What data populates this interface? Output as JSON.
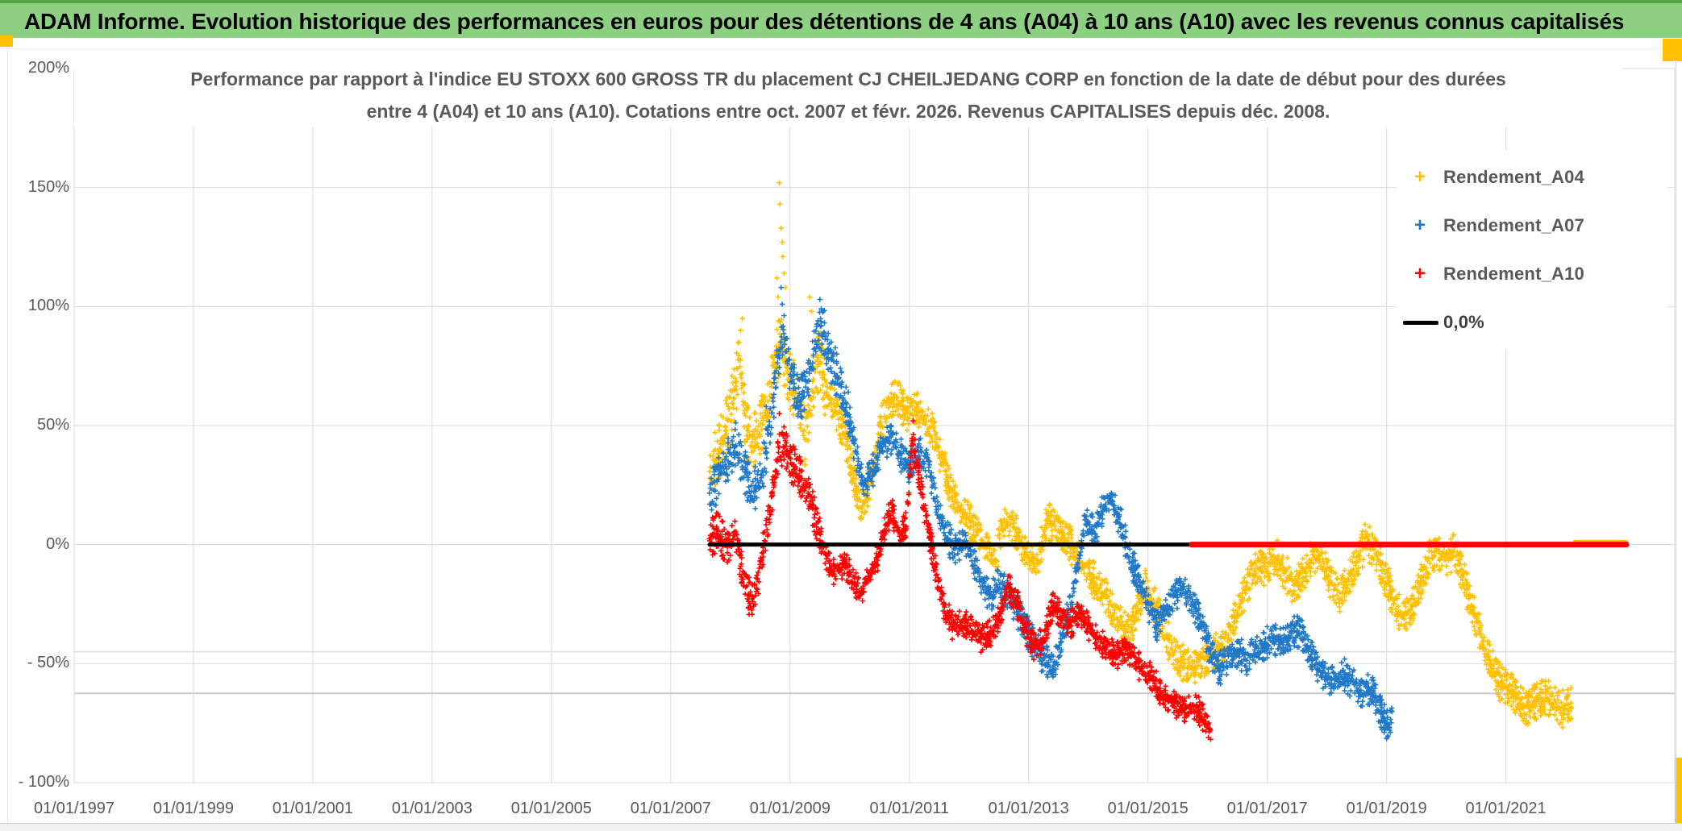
{
  "banner": {
    "title": "ADAM Informe. Evolution historique des performances en euros pour des détentions de 4 ans (A04) à 10 ans (A10) avec les revenus connus capitalisés",
    "bg_color": "#8ED081",
    "top_border_color": "#55A43F"
  },
  "chart": {
    "title1": "Performance par rapport à l'indice EU STOXX 600 GROSS TR  du placement CJ CHEILJEDANG CORP en fonction de la date de début pour des durées",
    "title2": "entre 4 (A04) et 10 ans (A10). Cotations entre oct. 2007 et févr. 2026. Revenus CAPITALISES depuis déc. 2008."
  },
  "legend": {
    "items": [
      {
        "label": "Rendement_A04",
        "marker": "+",
        "color": "#FFC000"
      },
      {
        "label": "Rendement_A07",
        "marker": "+",
        "color": "#1F78C8"
      },
      {
        "label": "Rendement_A10",
        "marker": "+",
        "color": "#FF0000"
      },
      {
        "label": "0,0%",
        "marker": "line",
        "color": "#000000"
      }
    ]
  },
  "chart_data": {
    "type": "scatter",
    "marker": "plus",
    "title": "Performance par rapport à l'indice EU STOXX 600 GROSS TR du placement CJ CHEILJEDANG CORP",
    "xlim": [
      1997.0,
      2023.83
    ],
    "ylim": [
      -100,
      200
    ],
    "grid": true,
    "x_axis": {
      "tick_years": [
        1997,
        1999,
        2001,
        2003,
        2005,
        2007,
        2009,
        2011,
        2013,
        2015,
        2017,
        2019,
        2021
      ],
      "tick_labels": [
        "01/01/1997",
        "01/01/1999",
        "01/01/2001",
        "01/01/2003",
        "01/01/2005",
        "01/01/2007",
        "01/01/2009",
        "01/01/2011",
        "01/01/2013",
        "01/01/2015",
        "01/01/2017",
        "01/01/2019",
        "01/01/2021"
      ]
    },
    "y_axis": {
      "tick_values": [
        200,
        150,
        100,
        50,
        0,
        -50,
        -100
      ],
      "tick_labels": [
        "200%",
        "150%",
        "100%",
        "50%",
        "0%",
        "- 50%",
        "- 100%"
      ]
    },
    "gridline_color": "#D9D9D9",
    "reference_lines": [
      {
        "name": "ref-minus-45",
        "value": -45,
        "color": "#DCDCDC",
        "width": 1.5
      },
      {
        "name": "ref-minus-62",
        "value": -62.5,
        "color": "#C9C9C9",
        "width": 2
      }
    ],
    "zero_lines": [
      {
        "name": "zero-black",
        "t": [
          2007.65,
          2015.73
        ],
        "value": 0,
        "color": "#000000",
        "width": 5
      },
      {
        "name": "zero-yellow",
        "t": [
          2022.15,
          2023.02
        ],
        "value": 1.3,
        "color": "#FFC000",
        "width": 4
      },
      {
        "name": "zero-red",
        "t": [
          2015.73,
          2023.02
        ],
        "value": 0,
        "color": "#FF0000",
        "width": 7
      }
    ],
    "series": [
      {
        "name": "Rendement_A04",
        "color": "#FFC000",
        "spread": 8,
        "spread_early": 1.7,
        "early_until": 2009.6,
        "points": [
          [
            2007.65,
            30
          ],
          [
            2007.8,
            38
          ],
          [
            2007.95,
            52
          ],
          [
            2008.05,
            62
          ],
          [
            2008.15,
            75
          ],
          [
            2008.25,
            52
          ],
          [
            2008.35,
            42
          ],
          [
            2008.5,
            48
          ],
          [
            2008.65,
            60
          ],
          [
            2008.75,
            78
          ],
          [
            2008.85,
            85
          ],
          [
            2008.95,
            72
          ],
          [
            2009.1,
            62
          ],
          [
            2009.25,
            45
          ],
          [
            2009.4,
            70
          ],
          [
            2009.5,
            78
          ],
          [
            2009.6,
            65
          ],
          [
            2009.75,
            58
          ],
          [
            2009.9,
            48
          ],
          [
            2010.05,
            30
          ],
          [
            2010.2,
            15
          ],
          [
            2010.35,
            28
          ],
          [
            2010.5,
            48
          ],
          [
            2010.65,
            60
          ],
          [
            2010.8,
            62
          ],
          [
            2010.95,
            55
          ],
          [
            2011.1,
            58
          ],
          [
            2011.25,
            52
          ],
          [
            2011.4,
            48
          ],
          [
            2011.55,
            35
          ],
          [
            2011.7,
            22
          ],
          [
            2011.85,
            15
          ],
          [
            2012.0,
            10
          ],
          [
            2012.15,
            5
          ],
          [
            2012.3,
            -2
          ],
          [
            2012.45,
            -8
          ],
          [
            2012.55,
            8
          ],
          [
            2012.7,
            10
          ],
          [
            2012.85,
            2
          ],
          [
            2013.0,
            -5
          ],
          [
            2013.15,
            -8
          ],
          [
            2013.3,
            10
          ],
          [
            2013.45,
            8
          ],
          [
            2013.6,
            3
          ],
          [
            2013.75,
            -2
          ],
          [
            2013.9,
            -8
          ],
          [
            2014.1,
            -15
          ],
          [
            2014.3,
            -22
          ],
          [
            2014.5,
            -32
          ],
          [
            2014.65,
            -38
          ],
          [
            2014.8,
            -30
          ],
          [
            2014.95,
            -18
          ],
          [
            2015.1,
            -25
          ],
          [
            2015.3,
            -38
          ],
          [
            2015.5,
            -48
          ],
          [
            2015.7,
            -52
          ],
          [
            2015.9,
            -50
          ],
          [
            2016.1,
            -46
          ],
          [
            2016.3,
            -42
          ],
          [
            2016.5,
            -28
          ],
          [
            2016.7,
            -15
          ],
          [
            2016.85,
            -8
          ],
          [
            2017.0,
            -10
          ],
          [
            2017.15,
            -5
          ],
          [
            2017.3,
            -12
          ],
          [
            2017.45,
            -18
          ],
          [
            2017.6,
            -12
          ],
          [
            2017.75,
            -6
          ],
          [
            2017.9,
            -4
          ],
          [
            2018.05,
            -15
          ],
          [
            2018.2,
            -22
          ],
          [
            2018.35,
            -15
          ],
          [
            2018.5,
            -8
          ],
          [
            2018.65,
            2
          ],
          [
            2018.8,
            -3
          ],
          [
            2018.95,
            -12
          ],
          [
            2019.1,
            -22
          ],
          [
            2019.25,
            -30
          ],
          [
            2019.4,
            -28
          ],
          [
            2019.55,
            -18
          ],
          [
            2019.7,
            -6
          ],
          [
            2019.85,
            -2
          ],
          [
            2020.0,
            -6
          ],
          [
            2020.15,
            -2
          ],
          [
            2020.3,
            -15
          ],
          [
            2020.45,
            -28
          ],
          [
            2020.6,
            -40
          ],
          [
            2020.75,
            -50
          ],
          [
            2020.9,
            -58
          ],
          [
            2021.05,
            -60
          ],
          [
            2021.2,
            -65
          ],
          [
            2021.35,
            -70
          ],
          [
            2021.5,
            -66
          ],
          [
            2021.65,
            -63
          ],
          [
            2021.8,
            -66
          ],
          [
            2021.95,
            -69
          ],
          [
            2022.1,
            -66
          ]
        ],
        "outliers": [
          [
            2008.82,
            152
          ],
          [
            2008.83,
            143
          ],
          [
            2008.85,
            133
          ],
          [
            2008.87,
            127
          ],
          [
            2008.88,
            121
          ],
          [
            2008.9,
            114
          ],
          [
            2008.92,
            108
          ],
          [
            2008.78,
            112
          ],
          [
            2008.8,
            104
          ],
          [
            2009.33,
            104
          ],
          [
            2009.36,
            98
          ],
          [
            2008.2,
            95
          ],
          [
            2008.17,
            90
          ]
        ]
      },
      {
        "name": "Rendement_A07",
        "color": "#1F78C8",
        "spread": 7,
        "spread_early": 1.5,
        "early_until": 2010.0,
        "points": [
          [
            2007.65,
            22
          ],
          [
            2007.8,
            28
          ],
          [
            2007.95,
            35
          ],
          [
            2008.1,
            42
          ],
          [
            2008.25,
            30
          ],
          [
            2008.4,
            22
          ],
          [
            2008.55,
            32
          ],
          [
            2008.7,
            55
          ],
          [
            2008.8,
            80
          ],
          [
            2008.9,
            88
          ],
          [
            2009.0,
            72
          ],
          [
            2009.15,
            60
          ],
          [
            2009.3,
            68
          ],
          [
            2009.45,
            88
          ],
          [
            2009.55,
            92
          ],
          [
            2009.65,
            80
          ],
          [
            2009.8,
            70
          ],
          [
            2009.95,
            58
          ],
          [
            2010.1,
            38
          ],
          [
            2010.25,
            25
          ],
          [
            2010.4,
            32
          ],
          [
            2010.55,
            42
          ],
          [
            2010.7,
            45
          ],
          [
            2010.85,
            38
          ],
          [
            2011.0,
            32
          ],
          [
            2011.15,
            40
          ],
          [
            2011.3,
            35
          ],
          [
            2011.45,
            18
          ],
          [
            2011.6,
            5
          ],
          [
            2011.75,
            -2
          ],
          [
            2011.9,
            2
          ],
          [
            2012.05,
            -5
          ],
          [
            2012.2,
            -15
          ],
          [
            2012.35,
            -22
          ],
          [
            2012.5,
            -15
          ],
          [
            2012.65,
            -20
          ],
          [
            2012.8,
            -28
          ],
          [
            2012.95,
            -35
          ],
          [
            2013.1,
            -42
          ],
          [
            2013.25,
            -48
          ],
          [
            2013.4,
            -52
          ],
          [
            2013.55,
            -40
          ],
          [
            2013.7,
            -25
          ],
          [
            2013.85,
            -5
          ],
          [
            2013.95,
            10
          ],
          [
            2014.1,
            5
          ],
          [
            2014.25,
            15
          ],
          [
            2014.4,
            18
          ],
          [
            2014.55,
            8
          ],
          [
            2014.7,
            -5
          ],
          [
            2014.85,
            -15
          ],
          [
            2015.0,
            -25
          ],
          [
            2015.15,
            -35
          ],
          [
            2015.3,
            -28
          ],
          [
            2015.45,
            -22
          ],
          [
            2015.6,
            -18
          ],
          [
            2015.75,
            -25
          ],
          [
            2015.9,
            -32
          ],
          [
            2016.05,
            -45
          ],
          [
            2016.2,
            -52
          ],
          [
            2016.35,
            -48
          ],
          [
            2016.5,
            -45
          ],
          [
            2016.65,
            -48
          ],
          [
            2016.8,
            -45
          ],
          [
            2016.95,
            -42
          ],
          [
            2017.1,
            -40
          ],
          [
            2017.25,
            -42
          ],
          [
            2017.4,
            -38
          ],
          [
            2017.55,
            -36
          ],
          [
            2017.7,
            -45
          ],
          [
            2017.85,
            -52
          ],
          [
            2018.0,
            -56
          ],
          [
            2018.15,
            -58
          ],
          [
            2018.3,
            -55
          ],
          [
            2018.45,
            -58
          ],
          [
            2018.6,
            -63
          ],
          [
            2018.75,
            -60
          ],
          [
            2018.9,
            -70
          ],
          [
            2019.0,
            -76
          ],
          [
            2019.1,
            -73
          ]
        ],
        "outliers": [
          [
            2008.85,
            108
          ],
          [
            2008.87,
            101
          ],
          [
            2009.5,
            103
          ],
          [
            2008.6,
            58
          ]
        ]
      },
      {
        "name": "Rendement_A10",
        "color": "#FF0000",
        "spread": 6,
        "spread_early": 1.4,
        "early_until": 2009.5,
        "points": [
          [
            2007.65,
            2
          ],
          [
            2007.8,
            6
          ],
          [
            2007.95,
            -2
          ],
          [
            2008.1,
            5
          ],
          [
            2008.2,
            -12
          ],
          [
            2008.35,
            -25
          ],
          [
            2008.5,
            -10
          ],
          [
            2008.65,
            12
          ],
          [
            2008.8,
            38
          ],
          [
            2008.9,
            42
          ],
          [
            2009.0,
            35
          ],
          [
            2009.15,
            30
          ],
          [
            2009.3,
            22
          ],
          [
            2009.45,
            8
          ],
          [
            2009.6,
            -5
          ],
          [
            2009.75,
            -12
          ],
          [
            2009.9,
            -8
          ],
          [
            2010.05,
            -15
          ],
          [
            2010.2,
            -20
          ],
          [
            2010.35,
            -12
          ],
          [
            2010.5,
            -3
          ],
          [
            2010.6,
            8
          ],
          [
            2010.7,
            14
          ],
          [
            2010.85,
            5
          ],
          [
            2010.95,
            8
          ],
          [
            2011.05,
            45
          ],
          [
            2011.15,
            30
          ],
          [
            2011.25,
            15
          ],
          [
            2011.35,
            2
          ],
          [
            2011.45,
            -12
          ],
          [
            2011.6,
            -28
          ],
          [
            2011.75,
            -35
          ],
          [
            2011.9,
            -33
          ],
          [
            2012.05,
            -36
          ],
          [
            2012.2,
            -40
          ],
          [
            2012.35,
            -38
          ],
          [
            2012.5,
            -32
          ],
          [
            2012.65,
            -18
          ],
          [
            2012.8,
            -24
          ],
          [
            2012.95,
            -36
          ],
          [
            2013.1,
            -43
          ],
          [
            2013.25,
            -40
          ],
          [
            2013.4,
            -26
          ],
          [
            2013.55,
            -30
          ],
          [
            2013.7,
            -34
          ],
          [
            2013.85,
            -28
          ],
          [
            2014.0,
            -34
          ],
          [
            2014.15,
            -40
          ],
          [
            2014.3,
            -44
          ],
          [
            2014.45,
            -47
          ],
          [
            2014.6,
            -44
          ],
          [
            2014.75,
            -48
          ],
          [
            2014.9,
            -52
          ],
          [
            2015.05,
            -56
          ],
          [
            2015.2,
            -62
          ],
          [
            2015.35,
            -65
          ],
          [
            2015.5,
            -68
          ],
          [
            2015.65,
            -70
          ],
          [
            2015.8,
            -68
          ],
          [
            2015.95,
            -74
          ],
          [
            2016.05,
            -79
          ]
        ],
        "outliers": [
          [
            2008.82,
            55
          ],
          [
            2011.06,
            52
          ]
        ]
      }
    ]
  }
}
